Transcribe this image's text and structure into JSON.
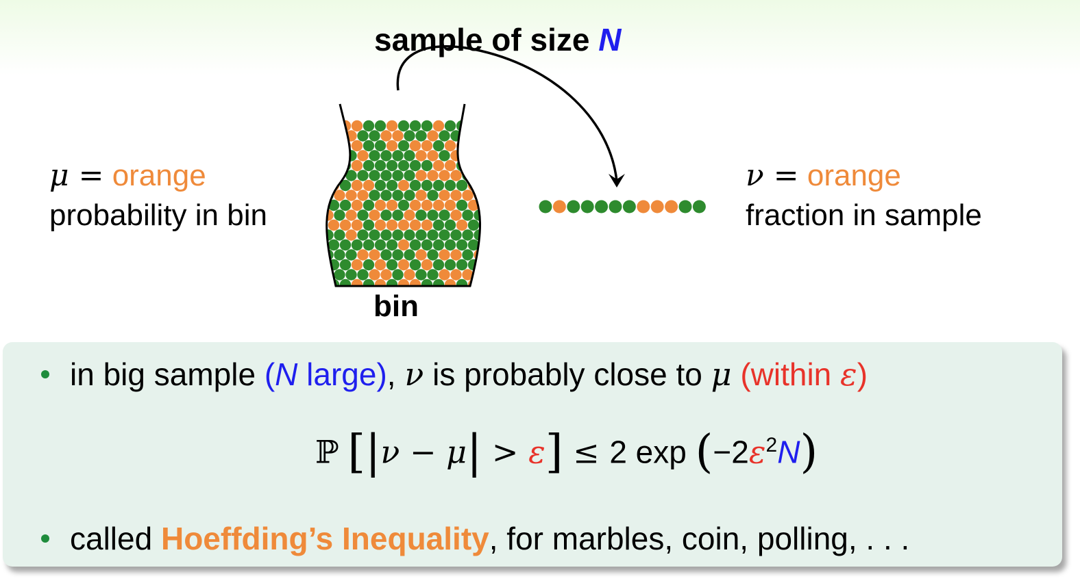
{
  "top": {
    "title_prefix": "sample of size ",
    "title_var": "N"
  },
  "left": {
    "line1_sym": "μ =",
    "line1_word": "orange",
    "line2": "probability in bin"
  },
  "right": {
    "line1_sym": "ν =",
    "line1_word": "orange",
    "line2": "fraction in sample"
  },
  "bin": {
    "label": "bin"
  },
  "sample_marbles": [
    "green",
    "orange",
    "green",
    "green",
    "green",
    "green",
    "green",
    "orange",
    "orange",
    "orange",
    "green",
    "green"
  ],
  "colors": {
    "orange": "#ef8a3a",
    "green": "#2e8b2e",
    "blue": "#1f1fee",
    "red": "#e8332a",
    "box_bg": "#e6f2ec"
  },
  "box": {
    "bullet1": {
      "t1": "in big sample ",
      "t2_open": "(",
      "t2_var": "N",
      "t2_rest": " large)",
      "t3": ", ",
      "t4_sym": "ν",
      "t5": " is probably close to ",
      "t6_sym": "μ",
      "t7_open": " (within ",
      "t7_sym": "ε",
      "t7_close": ")"
    },
    "formula": {
      "p": "ℙ",
      "lb": "[",
      "bar1": "|",
      "inner": "ν − μ",
      "bar2": "|",
      "gt": " > ",
      "eps": "ε",
      "rb": "]",
      "le": " ≤ ",
      "two": "2 exp ",
      "lp": "(",
      "minus2": "−2",
      "eps2": "ε",
      "sq": "2",
      "n": "N",
      "rp": ")"
    },
    "bullet2": {
      "t1": "called ",
      "t2": "Hoeffding’s Inequality",
      "t3": ", for marbles, coin, polling, . . ."
    }
  }
}
